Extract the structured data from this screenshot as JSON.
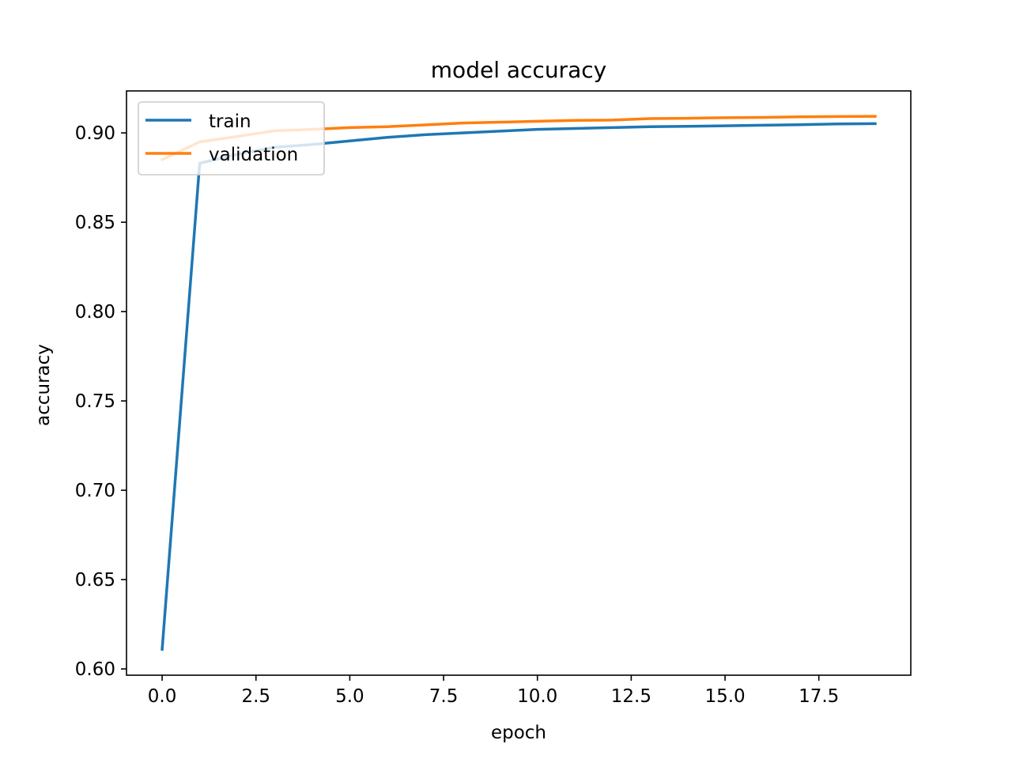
{
  "chart_data": {
    "type": "line",
    "title": "model accuracy",
    "xlabel": "epoch",
    "ylabel": "accuracy",
    "xlim": [
      -0.95,
      19.95
    ],
    "ylim": [
      0.5965,
      0.9235
    ],
    "xticks": [
      0.0,
      2.5,
      5.0,
      7.5,
      10.0,
      12.5,
      15.0,
      17.5
    ],
    "xtick_labels": [
      "0.0",
      "2.5",
      "5.0",
      "7.5",
      "10.0",
      "12.5",
      "15.0",
      "17.5"
    ],
    "yticks": [
      0.6,
      0.65,
      0.7,
      0.75,
      0.8,
      0.85,
      0.9
    ],
    "ytick_labels": [
      "0.60",
      "0.65",
      "0.70",
      "0.75",
      "0.80",
      "0.85",
      "0.90"
    ],
    "grid": false,
    "legend_position": "upper-left",
    "x": [
      0,
      1,
      2,
      3,
      4,
      5,
      6,
      7,
      8,
      9,
      10,
      11,
      12,
      13,
      14,
      15,
      16,
      17,
      18,
      19
    ],
    "series": [
      {
        "name": "train",
        "color": "#1f77b4",
        "values": [
          0.611,
          0.883,
          0.888,
          0.892,
          0.8935,
          0.8955,
          0.8975,
          0.899,
          0.9,
          0.901,
          0.902,
          0.9025,
          0.903,
          0.9035,
          0.9037,
          0.904,
          0.9043,
          0.9046,
          0.905,
          0.9052
        ]
      },
      {
        "name": "validation",
        "color": "#ff7f0e",
        "values": [
          0.885,
          0.895,
          0.898,
          0.9012,
          0.902,
          0.903,
          0.9035,
          0.9045,
          0.9055,
          0.906,
          0.9065,
          0.907,
          0.9072,
          0.908,
          0.9082,
          0.9085,
          0.9087,
          0.909,
          0.9092,
          0.9093
        ]
      }
    ]
  }
}
